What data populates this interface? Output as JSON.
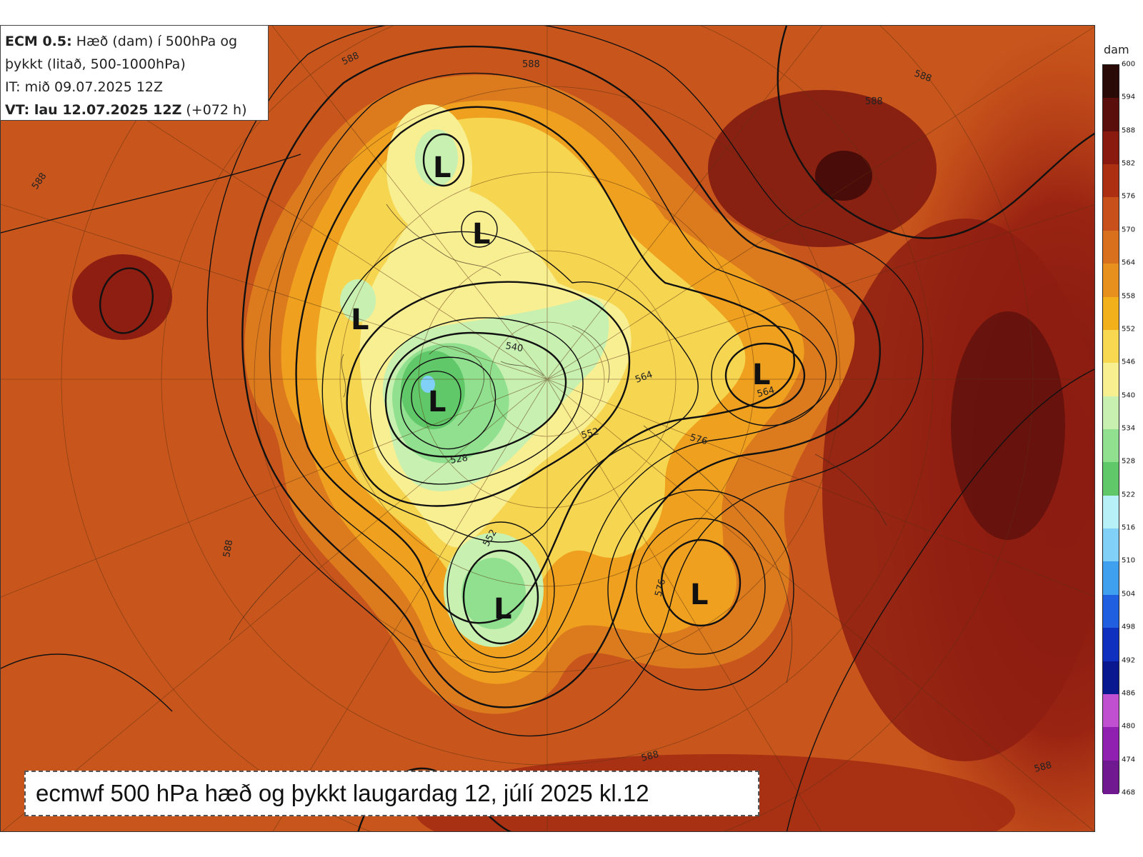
{
  "info": {
    "model_label": "ECM 0.5:",
    "description_line1": "Hæð (dam) í 500hPa og",
    "description_line2": "þykkt (litað, 500-1000hPa)",
    "init_time": "IT: mið 09.07.2025 12Z",
    "valid_label": "VT: lau 12.07.2025 12Z",
    "valid_offset": "(+072 h)"
  },
  "caption": "ecmwf 500 hPa hæð og þykkt laugardag 12, júlí 2025 kl.12",
  "colorbar": {
    "unit": "dam",
    "levels": [
      "600",
      "594",
      "588",
      "582",
      "576",
      "570",
      "564",
      "558",
      "552",
      "546",
      "540",
      "534",
      "528",
      "522",
      "516",
      "510",
      "504",
      "498",
      "492",
      "486",
      "480",
      "474",
      "468"
    ],
    "colors": [
      "#2a0a06",
      "#5a0f0d",
      "#8a1a10",
      "#ad2f12",
      "#c8501a",
      "#d8701e",
      "#e8901e",
      "#f2b01a",
      "#f8d850",
      "#f8f090",
      "#c8f0b0",
      "#90e090",
      "#60c868",
      "#b8f0f8",
      "#80d0f8",
      "#40a0f0",
      "#2060e0",
      "#1030c0",
      "#0a1890",
      "#c050d0",
      "#9020b0",
      "#701890",
      "#400860"
    ]
  },
  "lows": [
    {
      "label": "L"
    },
    {
      "label": "L"
    },
    {
      "label": "L"
    },
    {
      "label": "L"
    },
    {
      "label": "L"
    },
    {
      "label": "L"
    },
    {
      "label": "L"
    }
  ],
  "contour_labels": [
    "588",
    "588",
    "588",
    "588",
    "588",
    "540",
    "564",
    "564",
    "552",
    "576",
    "528",
    "552",
    "576",
    "588",
    "588",
    "588"
  ]
}
